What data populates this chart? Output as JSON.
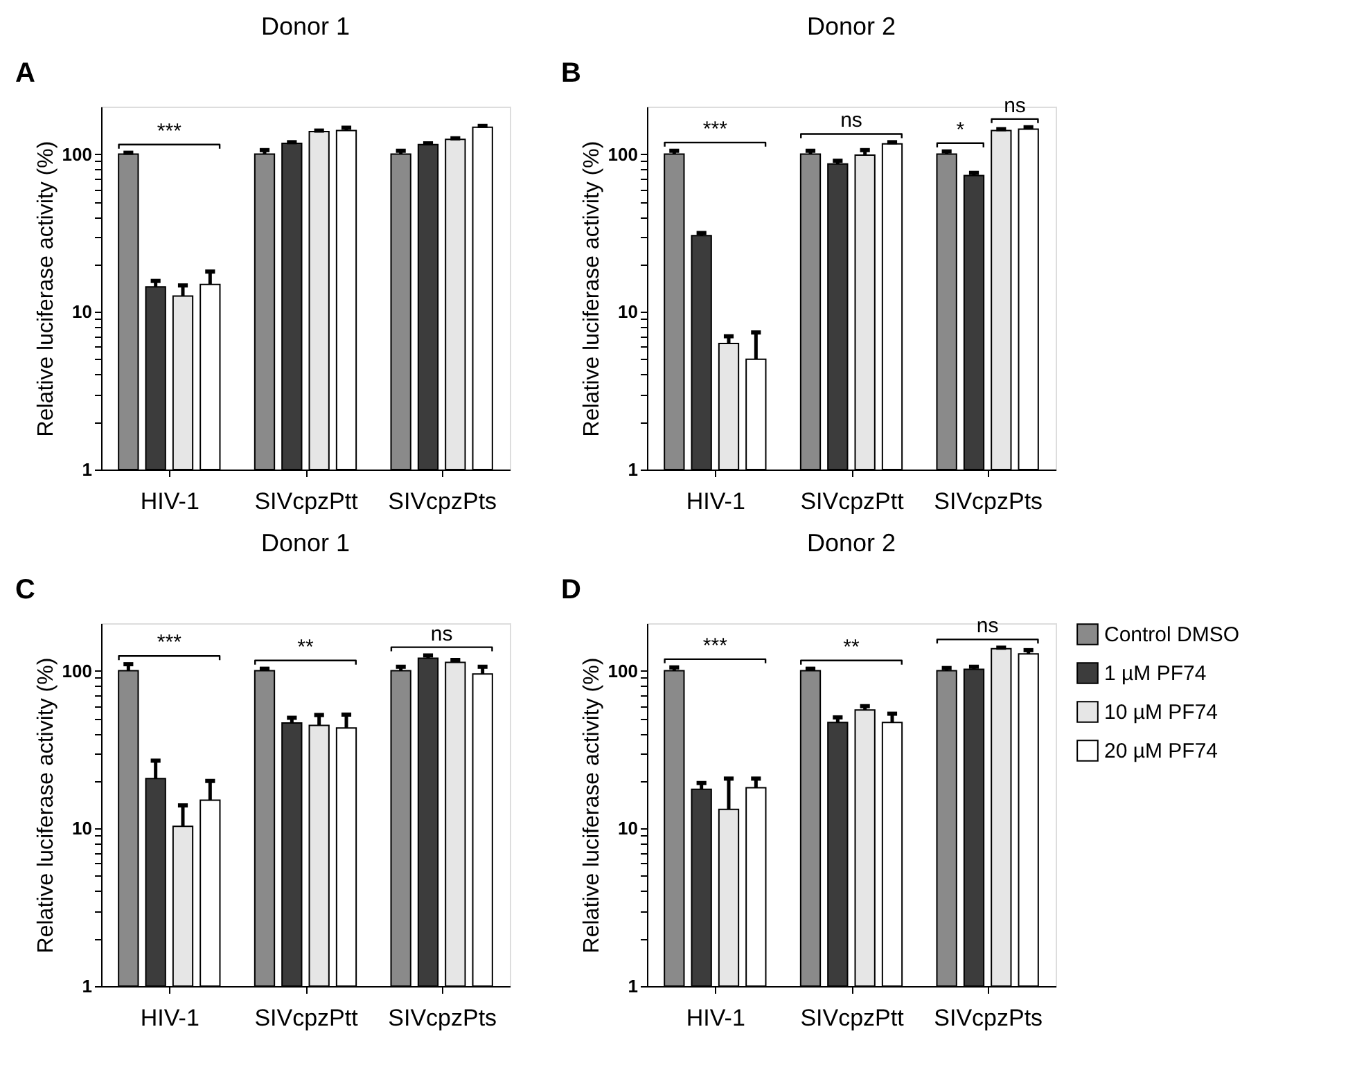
{
  "chart_data": [
    {
      "type": "bar",
      "title": "Donor 1",
      "ylabel": "Relative luciferase activity (%)",
      "categories": [
        "HIV-1",
        "SIVcpzPtt",
        "SIVcpzPts"
      ],
      "log": true,
      "ylim": [
        1,
        200
      ],
      "yticks": [
        1,
        {
          "value": 2,
          "label": null
        },
        {
          "value": 3,
          "label": null
        },
        {
          "value": 4,
          "label": null
        },
        {
          "value": 5,
          "label": null
        },
        {
          "value": 6,
          "label": null
        },
        {
          "value": 7,
          "label": null
        },
        {
          "value": 8,
          "label": null
        },
        {
          "value": 9,
          "label": null
        },
        10,
        {
          "value": 20,
          "label": null
        },
        {
          "value": 30,
          "label": null
        },
        {
          "value": 40,
          "label": null
        },
        {
          "value": 50,
          "label": null
        },
        {
          "value": 60,
          "label": null
        },
        {
          "value": 70,
          "label": null
        },
        {
          "value": 80,
          "label": null
        },
        {
          "value": 90,
          "label": null
        },
        100
      ],
      "series": [
        {
          "color": "#8a8a8a",
          "values": [
            100,
            100,
            100
          ],
          "errors": [
            [
              100,
              102
            ],
            [
              100,
              106
            ],
            [
              100,
              105
            ]
          ]
        },
        {
          "color": "#3c3c3c",
          "values": [
            14.4,
            117,
            115
          ],
          "errors": [
            [
              14.4,
              15.7
            ],
            [
              117,
              119
            ],
            [
              115,
              117
            ]
          ]
        },
        {
          "color": "#e6e6e6",
          "values": [
            12.6,
            139,
            124
          ],
          "errors": [
            [
              12.6,
              14.7
            ],
            [
              139,
              141
            ],
            [
              124,
              126
            ]
          ]
        },
        {
          "color": "#ffffff",
          "values": [
            14.9,
            141,
            148
          ],
          "errors": [
            [
              14.9,
              18.0
            ],
            [
              141,
              147
            ],
            [
              148,
              151
            ]
          ]
        }
      ],
      "annotations": [
        "A",
        "***"
      ],
      "grid": false,
      "legend": false
    },
    {
      "type": "bar",
      "title": "Donor 2",
      "ylabel": "Relative luciferase activity (%)",
      "categories": [
        "HIV-1",
        "SIVcpzPtt",
        "SIVcpzPts"
      ],
      "log": true,
      "ylim": [
        1,
        200
      ],
      "yticks": [
        1,
        {
          "value": 2,
          "label": null
        },
        {
          "value": 3,
          "label": null
        },
        {
          "value": 4,
          "label": null
        },
        {
          "value": 5,
          "label": null
        },
        {
          "value": 6,
          "label": null
        },
        {
          "value": 7,
          "label": null
        },
        {
          "value": 8,
          "label": null
        },
        {
          "value": 9,
          "label": null
        },
        10,
        {
          "value": 20,
          "label": null
        },
        {
          "value": 30,
          "label": null
        },
        {
          "value": 40,
          "label": null
        },
        {
          "value": 50,
          "label": null
        },
        {
          "value": 60,
          "label": null
        },
        {
          "value": 70,
          "label": null
        },
        {
          "value": 80,
          "label": null
        },
        {
          "value": 90,
          "label": null
        },
        100
      ],
      "series": [
        {
          "color": "#8a8a8a",
          "values": [
            100,
            100,
            100
          ],
          "errors": [
            [
              100,
              105
            ],
            [
              100,
              105
            ],
            [
              100,
              104
            ]
          ]
        },
        {
          "color": "#3c3c3c",
          "values": [
            30.4,
            86.7,
            73.1
          ],
          "errors": [
            [
              30.4,
              31.6
            ],
            [
              86.7,
              90.8
            ],
            [
              73.1,
              76.0
            ]
          ]
        },
        {
          "color": "#e6e6e6",
          "values": [
            6.3,
            98.6,
            141
          ],
          "errors": [
            [
              6.3,
              7.0
            ],
            [
              98.6,
              106
            ],
            [
              141,
              144
            ]
          ]
        },
        {
          "color": "#ffffff",
          "values": [
            5.0,
            116,
            144
          ],
          "errors": [
            [
              5.0,
              7.4
            ],
            [
              116,
              119
            ],
            [
              144,
              148
            ]
          ]
        }
      ],
      "annotations": [
        "B",
        "***",
        "ns",
        "*",
        "ns"
      ],
      "grid": false,
      "legend": false
    },
    {
      "type": "bar",
      "title": "Donor 1",
      "ylabel": "Relative luciferase activity (%)",
      "categories": [
        "HIV-1",
        "SIVcpzPtt",
        "SIVcpzPts"
      ],
      "log": true,
      "ylim": [
        1,
        200
      ],
      "yticks": [
        1,
        {
          "value": 2,
          "label": null
        },
        {
          "value": 3,
          "label": null
        },
        {
          "value": 4,
          "label": null
        },
        {
          "value": 5,
          "label": null
        },
        {
          "value": 6,
          "label": null
        },
        {
          "value": 7,
          "label": null
        },
        {
          "value": 8,
          "label": null
        },
        {
          "value": 9,
          "label": null
        },
        10,
        {
          "value": 20,
          "label": null
        },
        {
          "value": 30,
          "label": null
        },
        {
          "value": 40,
          "label": null
        },
        {
          "value": 50,
          "label": null
        },
        {
          "value": 60,
          "label": null
        },
        {
          "value": 70,
          "label": null
        },
        {
          "value": 80,
          "label": null
        },
        {
          "value": 90,
          "label": null
        },
        100
      ],
      "series": [
        {
          "color": "#8a8a8a",
          "values": [
            100,
            100,
            100
          ],
          "errors": [
            [
              100,
              110
            ],
            [
              100,
              103
            ],
            [
              100,
              106
            ]
          ]
        },
        {
          "color": "#3c3c3c",
          "values": [
            20.7,
            46.6,
            120
          ],
          "errors": [
            [
              20.7,
              26.9
            ],
            [
              46.6,
              50.3
            ],
            [
              120,
              125
            ]
          ]
        },
        {
          "color": "#e6e6e6",
          "values": [
            10.3,
            45.0,
            113
          ],
          "errors": [
            [
              10.3,
              14.0
            ],
            [
              45.0,
              52.4
            ],
            [
              113,
              117
            ]
          ]
        },
        {
          "color": "#ffffff",
          "values": [
            15.1,
            43.3,
            95.3
          ],
          "errors": [
            [
              15.1,
              20.0
            ],
            [
              43.3,
              52.7
            ],
            [
              95.3,
              106
            ]
          ]
        }
      ],
      "annotations": [
        "C",
        "***",
        "**",
        "ns"
      ],
      "grid": false,
      "legend": false
    },
    {
      "type": "bar",
      "title": "Donor 2",
      "ylabel": "Relative luciferase activity (%)",
      "categories": [
        "HIV-1",
        "SIVcpzPtt",
        "SIVcpzPts"
      ],
      "log": true,
      "ylim": [
        1,
        200
      ],
      "yticks": [
        1,
        {
          "value": 2,
          "label": null
        },
        {
          "value": 3,
          "label": null
        },
        {
          "value": 4,
          "label": null
        },
        {
          "value": 5,
          "label": null
        },
        {
          "value": 6,
          "label": null
        },
        {
          "value": 7,
          "label": null
        },
        {
          "value": 8,
          "label": null
        },
        {
          "value": 9,
          "label": null
        },
        10,
        {
          "value": 20,
          "label": null
        },
        {
          "value": 30,
          "label": null
        },
        {
          "value": 40,
          "label": null
        },
        {
          "value": 50,
          "label": null
        },
        {
          "value": 60,
          "label": null
        },
        {
          "value": 70,
          "label": null
        },
        {
          "value": 80,
          "label": null
        },
        {
          "value": 90,
          "label": null
        },
        100
      ],
      "series": [
        {
          "name": "Control DMSO",
          "color": "#8a8a8a",
          "values": [
            100,
            100,
            100
          ],
          "errors": [
            [
              100,
              105
            ],
            [
              100,
              103
            ],
            [
              100,
              104
            ]
          ]
        },
        {
          "name": "1 µM PF74",
          "color": "#3c3c3c",
          "values": [
            17.7,
            47.0,
            102
          ],
          "errors": [
            [
              17.7,
              19.4
            ],
            [
              47.0,
              50.6
            ],
            [
              102,
              106
            ]
          ]
        },
        {
          "name": "10 µM PF74",
          "color": "#e6e6e6",
          "values": [
            13.2,
            56.4,
            138
          ],
          "errors": [
            [
              13.2,
              20.7
            ],
            [
              56.4,
              59.6
            ],
            [
              138,
              140
            ]
          ]
        },
        {
          "name": "20 µM PF74",
          "color": "#ffffff",
          "values": [
            18.1,
            47.0,
            128
          ],
          "errors": [
            [
              18.1,
              20.7
            ],
            [
              47.0,
              53.4
            ],
            [
              128,
              135
            ]
          ]
        }
      ],
      "annotations": [
        "D",
        "***",
        "**",
        "ns"
      ],
      "grid": false,
      "legend": "right"
    }
  ]
}
